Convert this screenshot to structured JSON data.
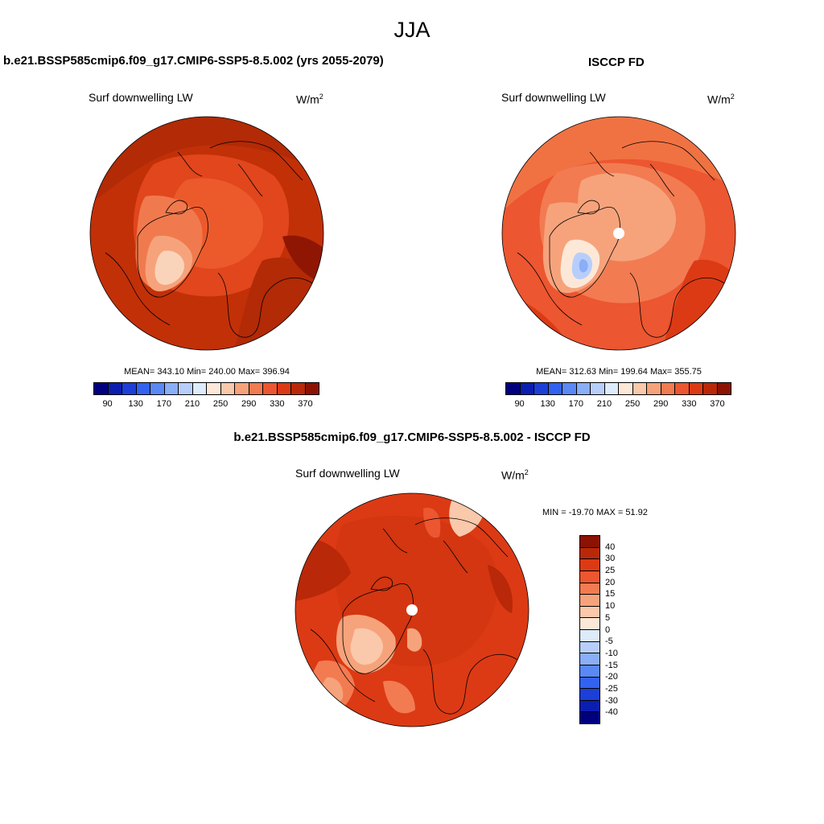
{
  "page": {
    "title": "JJA"
  },
  "panels": {
    "model": {
      "title": "b.e21.BSSP585cmip6.f09_g17.CMIP6-SSP5-8.5.002 (yrs 2055-2079)",
      "variable": "Surf downwelling LW",
      "units_base": "W/m",
      "units_exp": "2",
      "stats": "MEAN= 343.10  Min= 240.00  Max= 396.94"
    },
    "obs": {
      "title": "ISCCP FD",
      "variable": "Surf downwelling LW",
      "units_base": "W/m",
      "units_exp": "2",
      "stats": "MEAN= 312.63  Min= 199.64  Max= 355.75"
    },
    "diff": {
      "title": "b.e21.BSSP585cmip6.f09_g17.CMIP6-SSP5-8.5.002 - ISCCP FD",
      "variable": "Surf downwelling LW",
      "units_base": "W/m",
      "units_exp": "2",
      "stats": "MIN = -19.70 MAX =  51.92"
    }
  },
  "colorbars": {
    "abs_colors": [
      "#00007f",
      "#0a1fb0",
      "#1c3fd8",
      "#3262f0",
      "#5a88f5",
      "#8aaef7",
      "#b8cefa",
      "#deebfb",
      "#fde8d8",
      "#fac8aa",
      "#f6a37c",
      "#f27b52",
      "#ec5630",
      "#dc3a14",
      "#b92808",
      "#8c1202"
    ],
    "abs_ticks": [
      "90",
      "130",
      "170",
      "210",
      "250",
      "290",
      "330",
      "370"
    ],
    "diff_colors": [
      "#8c1202",
      "#b92808",
      "#dc3a14",
      "#ec5630",
      "#f27b52",
      "#f6a37c",
      "#fac8aa",
      "#fde8d8",
      "#deebfb",
      "#b8cefa",
      "#8aaef7",
      "#5a88f5",
      "#3262f0",
      "#1c3fd8",
      "#0a1fb0",
      "#00007f"
    ],
    "diff_ticks": [
      "40",
      "30",
      "25",
      "20",
      "15",
      "10",
      "5",
      "0",
      "-5",
      "-10",
      "-15",
      "-20",
      "-25",
      "-30",
      "-40"
    ]
  }
}
